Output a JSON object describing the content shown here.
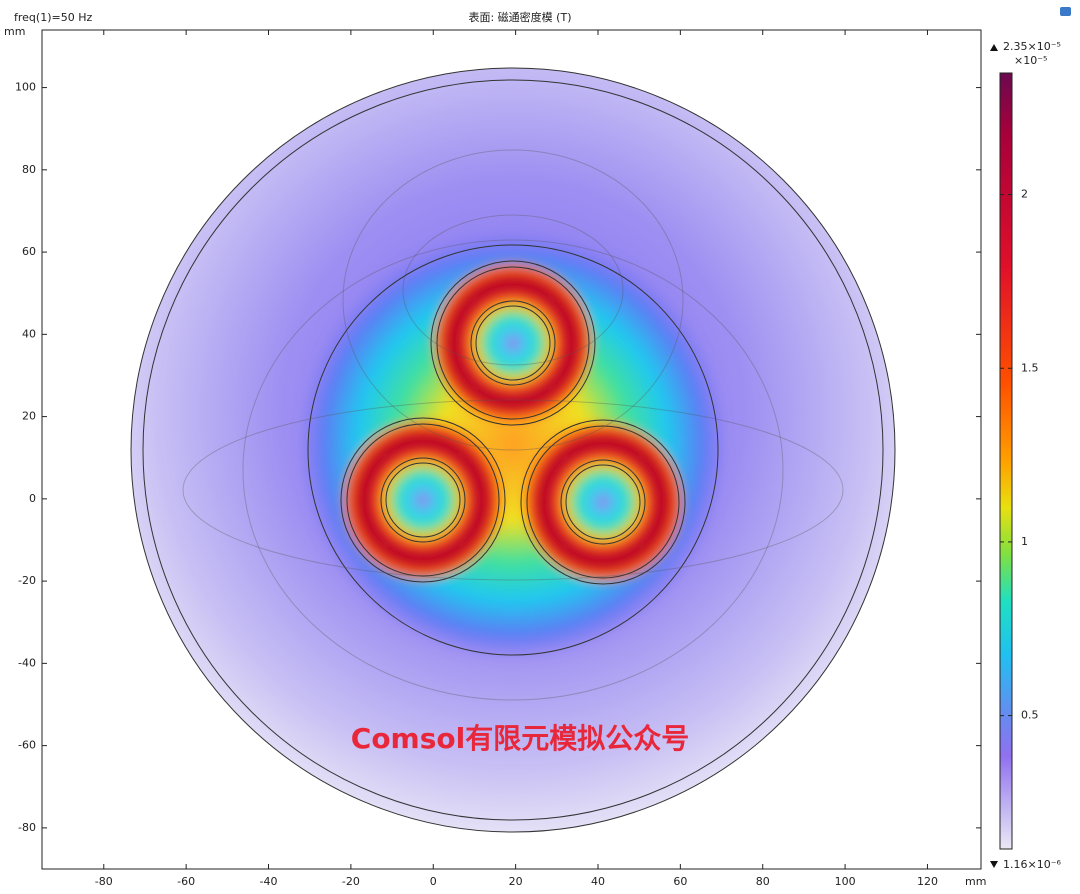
{
  "chart_data": {
    "type": "surface",
    "title": "表面: 磁通密度模 (T)",
    "parameter": "freq(1)=50 Hz",
    "xlabel": "mm",
    "ylabel": "mm",
    "xlim": [
      -95,
      133
    ],
    "ylim": [
      -90,
      114
    ],
    "xticks": [
      -80,
      -60,
      -40,
      -20,
      0,
      20,
      40,
      60,
      80,
      100,
      120
    ],
    "yticks": [
      -80,
      -60,
      -40,
      -20,
      0,
      20,
      40,
      60,
      80,
      100
    ],
    "colorbar": {
      "scale_label": "×10⁻⁵",
      "clim": [
        {
          "value": 0.116,
          "label": "1.16×10⁻⁶"
        },
        {
          "value": 2.35,
          "label": "2.35×10⁻⁵"
        }
      ],
      "ticks": [
        0.5,
        1,
        1.5,
        2
      ]
    },
    "watermark": "Comsol有限元模拟公众号"
  }
}
